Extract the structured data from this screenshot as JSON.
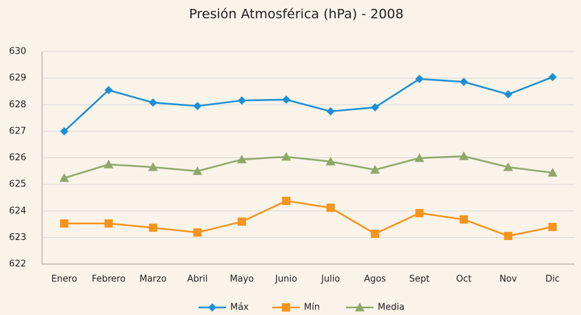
{
  "chart_data": {
    "type": "line",
    "title": "Presión Atmosférica (hPa) - 2008",
    "categories": [
      "Enero",
      "Febrero",
      "Marzo",
      "Abril",
      "Mayo",
      "Junio",
      "Julio",
      "Agos",
      "Sept",
      "Oct",
      "Nov",
      "Dic"
    ],
    "series": [
      {
        "name": "Máx",
        "color": "#1a8fd6",
        "marker": "diamond",
        "values": [
          627.0,
          628.55,
          628.08,
          627.95,
          628.16,
          628.19,
          627.75,
          627.9,
          628.97,
          628.86,
          628.39,
          629.04
        ]
      },
      {
        "name": "Mín",
        "color": "#f7941d",
        "marker": "square",
        "values": [
          623.53,
          623.53,
          623.37,
          623.19,
          623.6,
          624.38,
          624.12,
          623.14,
          623.92,
          623.68,
          623.06,
          623.4
        ]
      },
      {
        "name": "Media",
        "color": "#8fa86a",
        "marker": "triangle",
        "values": [
          625.24,
          625.75,
          625.65,
          625.5,
          625.94,
          626.04,
          625.86,
          625.55,
          625.99,
          626.06,
          625.65,
          625.44
        ]
      }
    ],
    "ylim": [
      622,
      630
    ],
    "yticks": [
      622,
      623,
      624,
      625,
      626,
      627,
      628,
      629,
      630
    ],
    "grid": true,
    "legend": "bottom"
  }
}
